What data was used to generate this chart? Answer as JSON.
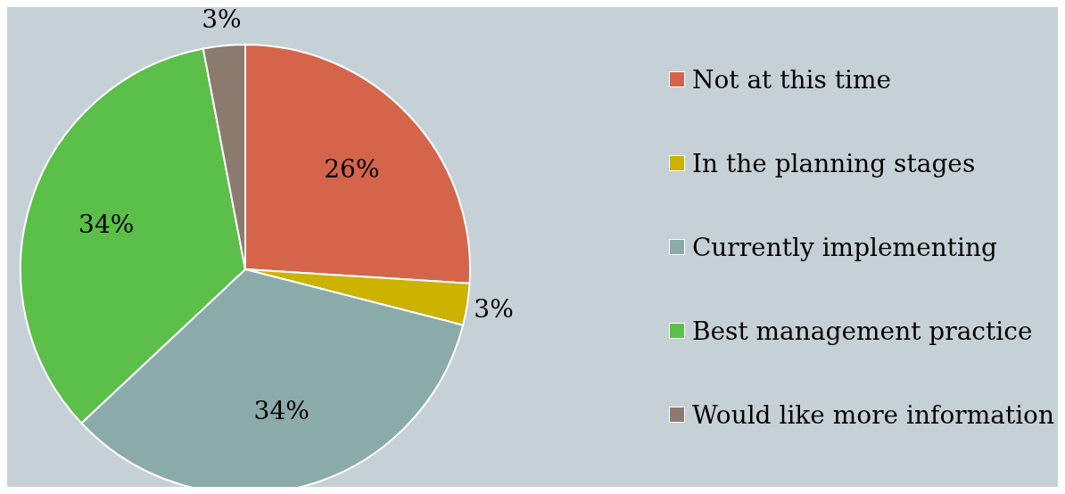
{
  "chart_data": {
    "type": "pie",
    "categories": [
      "Not at this time",
      "In the planning stages",
      "Currently implementing",
      "Best management practice",
      "Would like more information"
    ],
    "values": [
      26,
      3,
      34,
      34,
      3
    ],
    "value_labels": [
      "26%",
      "3%",
      "34%",
      "34%",
      "3%"
    ],
    "colors": [
      "#d4654b",
      "#cbb300",
      "#8aabaa",
      "#5bbf4a",
      "#8b7a6e"
    ],
    "legend": "right"
  }
}
